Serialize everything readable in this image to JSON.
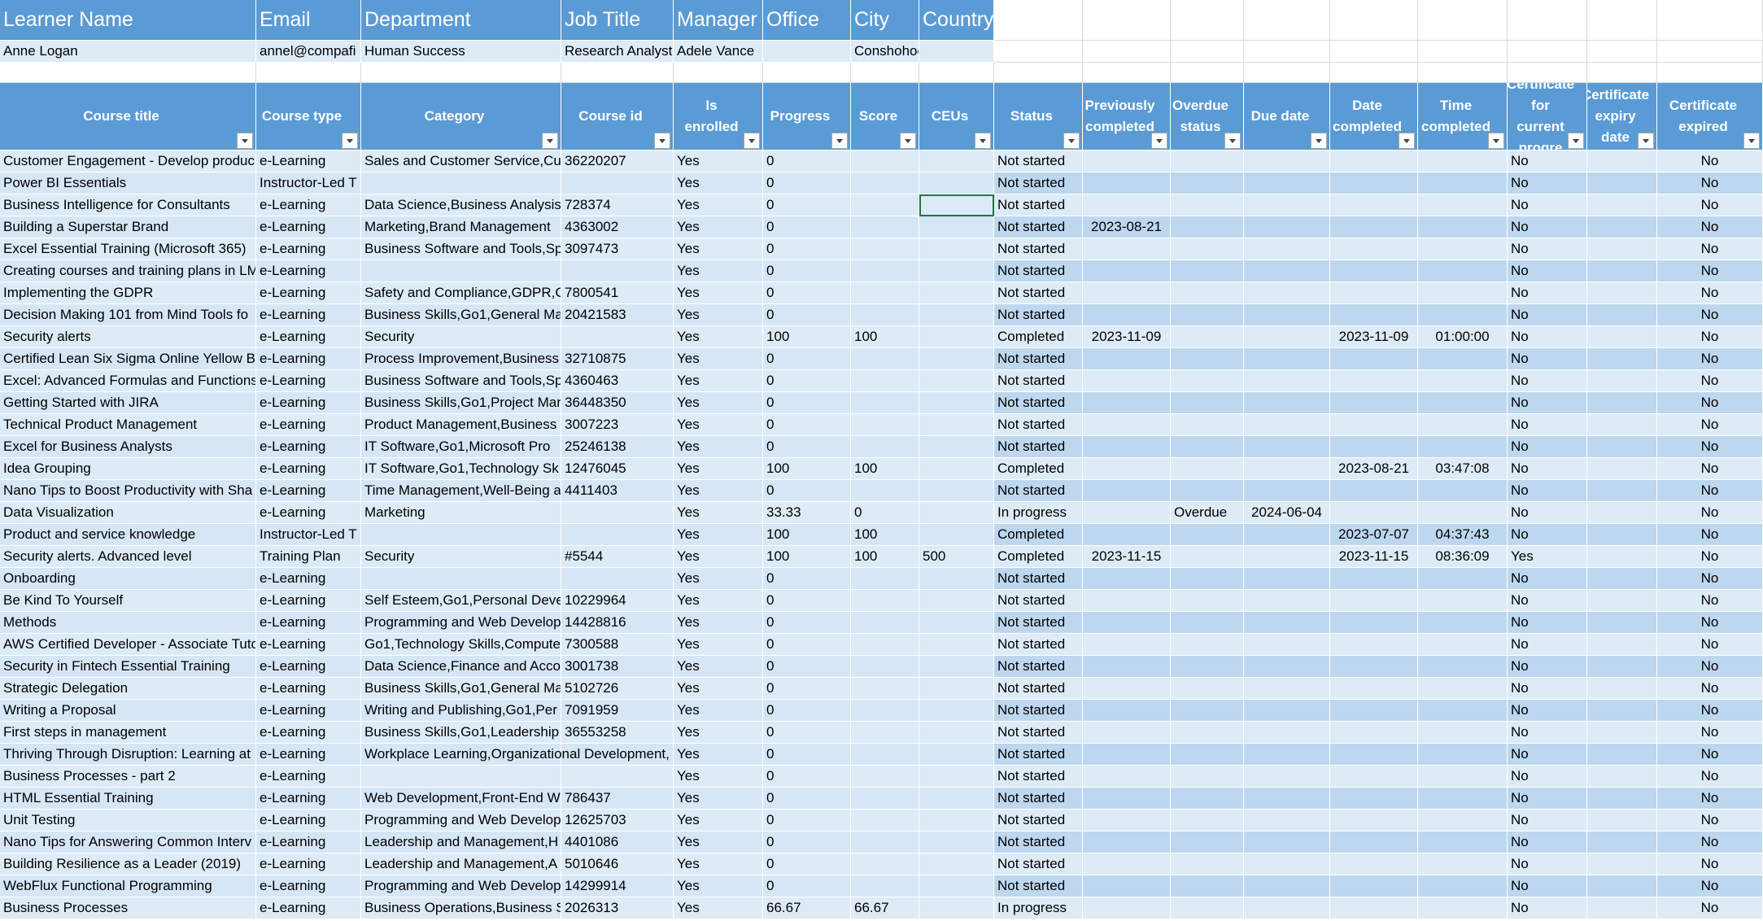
{
  "learner": {
    "headers": [
      "Learner Name",
      "Email",
      "Department",
      "Job Title",
      "Manager",
      "Office",
      "City",
      "Country"
    ],
    "values": [
      "Anne Logan",
      "annel@compafi",
      "Human Success",
      "Research Analyst",
      "Adele Vance",
      null,
      "Conshohoc",
      null
    ]
  },
  "table": {
    "headers": [
      "Course title",
      "Course type",
      "Category",
      "Course id",
      "Is enrolled",
      "Progress",
      "Score",
      "CEUs",
      "Status",
      "Previously completed",
      "Overdue status",
      "Due date",
      "Date completed",
      "Time completed",
      "Certificate for current progre",
      "Certificate expiry date",
      "Certificate expired"
    ],
    "rows": [
      [
        "Customer Engagement - Develop produc",
        "e-Learning",
        "Sales and Customer Service,Cus",
        "36220207",
        "Yes",
        0,
        null,
        null,
        "Not started",
        null,
        null,
        null,
        null,
        null,
        "No",
        null,
        "No"
      ],
      [
        "Power BI Essentials",
        "Instructor-Led T",
        null,
        null,
        "Yes",
        0,
        null,
        null,
        "Not started",
        null,
        null,
        null,
        null,
        null,
        "No",
        null,
        "No"
      ],
      [
        "Business Intelligence for Consultants",
        "e-Learning",
        "Data Science,Business Analysis",
        "728374",
        "Yes",
        0,
        null,
        null,
        "Not started",
        null,
        null,
        null,
        null,
        null,
        "No",
        null,
        "No"
      ],
      [
        "Building a Superstar Brand",
        "e-Learning",
        "Marketing,Brand Management",
        "4363002",
        "Yes",
        0,
        null,
        null,
        "Not started",
        "2023-08-21",
        null,
        null,
        null,
        null,
        "No",
        null,
        "No"
      ],
      [
        "Excel Essential Training (Microsoft 365)",
        "e-Learning",
        "Business Software and Tools,Sp",
        "3097473",
        "Yes",
        0,
        null,
        null,
        "Not started",
        null,
        null,
        null,
        null,
        null,
        "No",
        null,
        "No"
      ],
      [
        "Creating courses and training plans in LM",
        "e-Learning",
        null,
        null,
        "Yes",
        0,
        null,
        null,
        "Not started",
        null,
        null,
        null,
        null,
        null,
        "No",
        null,
        "No"
      ],
      [
        "Implementing the GDPR",
        "e-Learning",
        "Safety and Compliance,GDPR,G",
        "7800541",
        "Yes",
        0,
        null,
        null,
        "Not started",
        null,
        null,
        null,
        null,
        null,
        "No",
        null,
        "No"
      ],
      [
        "Decision Making 101 from Mind Tools fo",
        "e-Learning",
        "Business Skills,Go1,General Ma",
        "20421583",
        "Yes",
        0,
        null,
        null,
        "Not started",
        null,
        null,
        null,
        null,
        null,
        "No",
        null,
        "No"
      ],
      [
        "Security alerts",
        "e-Learning",
        "Security",
        null,
        "Yes",
        100,
        100,
        null,
        "Completed",
        "2023-11-09",
        null,
        null,
        "2023-11-09",
        "01:00:00",
        "No",
        null,
        "No"
      ],
      [
        "Certified Lean Six Sigma Online Yellow Be",
        "e-Learning",
        "Process Improvement,Business",
        "32710875",
        "Yes",
        0,
        null,
        null,
        "Not started",
        null,
        null,
        null,
        null,
        null,
        "No",
        null,
        "No"
      ],
      [
        "Excel: Advanced Formulas and Functions",
        "e-Learning",
        "Business Software and Tools,Sp",
        "4360463",
        "Yes",
        0,
        null,
        null,
        "Not started",
        null,
        null,
        null,
        null,
        null,
        "No",
        null,
        "No"
      ],
      [
        "Getting Started with JIRA",
        "e-Learning",
        "Business Skills,Go1,Project Mar",
        "36448350",
        "Yes",
        0,
        null,
        null,
        "Not started",
        null,
        null,
        null,
        null,
        null,
        "No",
        null,
        "No"
      ],
      [
        "Technical Product Management",
        "e-Learning",
        "Product Management,Business",
        "3007223",
        "Yes",
        0,
        null,
        null,
        "Not started",
        null,
        null,
        null,
        null,
        null,
        "No",
        null,
        "No"
      ],
      [
        "Excel for Business Analysts",
        "e-Learning",
        "IT Software,Go1,Microsoft Pro",
        "25246138",
        "Yes",
        0,
        null,
        null,
        "Not started",
        null,
        null,
        null,
        null,
        null,
        "No",
        null,
        "No"
      ],
      [
        "Idea Grouping",
        "e-Learning",
        "IT Software,Go1,Technology Sk",
        "12476045",
        "Yes",
        100,
        100,
        null,
        "Completed",
        null,
        null,
        null,
        "2023-08-21",
        "03:47:08",
        "No",
        null,
        "No"
      ],
      [
        "Nano Tips to Boost Productivity with Sha",
        "e-Learning",
        "Time Management,Well-Being a",
        "4411403",
        "Yes",
        0,
        null,
        null,
        "Not started",
        null,
        null,
        null,
        null,
        null,
        "No",
        null,
        "No"
      ],
      [
        "Data Visualization",
        "e-Learning",
        "Marketing",
        null,
        "Yes",
        33.33,
        0,
        null,
        "In progress",
        null,
        "Overdue",
        "2024-06-04",
        null,
        null,
        "No",
        null,
        "No"
      ],
      [
        "Product and service knowledge",
        "Instructor-Led T",
        null,
        null,
        "Yes",
        100,
        100,
        null,
        "Completed",
        null,
        null,
        null,
        "2023-07-07",
        "04:37:43",
        "No",
        null,
        "No"
      ],
      [
        "Security alerts. Advanced level",
        "Training Plan",
        "Security",
        "#5544",
        "Yes",
        100,
        100,
        500,
        "Completed",
        "2023-11-15",
        null,
        null,
        "2023-11-15",
        "08:36:09",
        "Yes",
        null,
        "No"
      ],
      [
        "Onboarding",
        "e-Learning",
        null,
        null,
        "Yes",
        0,
        null,
        null,
        "Not started",
        null,
        null,
        null,
        null,
        null,
        "No",
        null,
        "No"
      ],
      [
        "Be Kind To Yourself",
        "e-Learning",
        "Self Esteem,Go1,Personal Deve",
        "10229964",
        "Yes",
        0,
        null,
        null,
        "Not started",
        null,
        null,
        null,
        null,
        null,
        "No",
        null,
        "No"
      ],
      [
        "Methods",
        "e-Learning",
        "Programming and Web Develop",
        "14428816",
        "Yes",
        0,
        null,
        null,
        "Not started",
        null,
        null,
        null,
        null,
        null,
        "No",
        null,
        "No"
      ],
      [
        "AWS Certified Developer - Associate Tuto",
        "e-Learning",
        "Go1,Technology Skills,Compute",
        "7300588",
        "Yes",
        0,
        null,
        null,
        "Not started",
        null,
        null,
        null,
        null,
        null,
        "No",
        null,
        "No"
      ],
      [
        "Security in Fintech Essential Training",
        "e-Learning",
        "Data Science,Finance and Accou",
        "3001738",
        "Yes",
        0,
        null,
        null,
        "Not started",
        null,
        null,
        null,
        null,
        null,
        "No",
        null,
        "No"
      ],
      [
        "Strategic Delegation",
        "e-Learning",
        "Business Skills,Go1,General Ma",
        "5102726",
        "Yes",
        0,
        null,
        null,
        "Not started",
        null,
        null,
        null,
        null,
        null,
        "No",
        null,
        "No"
      ],
      [
        "Writing a Proposal",
        "e-Learning",
        "Writing and Publishing,Go1,Per",
        "7091959",
        "Yes",
        0,
        null,
        null,
        "Not started",
        null,
        null,
        null,
        null,
        null,
        "No",
        null,
        "No"
      ],
      [
        "First steps in management",
        "e-Learning",
        "Business Skills,Go1,Leadership",
        "36553258",
        "Yes",
        0,
        null,
        null,
        "Not started",
        null,
        null,
        null,
        null,
        null,
        "No",
        null,
        "No"
      ],
      [
        "Thriving Through Disruption: Learning at",
        "e-Learning",
        "Workplace Learning,Organizational Development,",
        null,
        "Yes",
        0,
        null,
        null,
        "Not started",
        null,
        null,
        null,
        null,
        null,
        "No",
        null,
        "No"
      ],
      [
        "Business Processes - part 2",
        "e-Learning",
        null,
        null,
        "Yes",
        0,
        null,
        null,
        "Not started",
        null,
        null,
        null,
        null,
        null,
        "No",
        null,
        "No"
      ],
      [
        "HTML Essential Training",
        "e-Learning",
        "Web Development,Front-End W",
        "786437",
        "Yes",
        0,
        null,
        null,
        "Not started",
        null,
        null,
        null,
        null,
        null,
        "No",
        null,
        "No"
      ],
      [
        "Unit Testing",
        "e-Learning",
        "Programming and Web Develop",
        "12625703",
        "Yes",
        0,
        null,
        null,
        "Not started",
        null,
        null,
        null,
        null,
        null,
        "No",
        null,
        "No"
      ],
      [
        "Nano Tips for Answering Common Interv",
        "e-Learning",
        "Leadership and Management,H",
        "4401086",
        "Yes",
        0,
        null,
        null,
        "Not started",
        null,
        null,
        null,
        null,
        null,
        "No",
        null,
        "No"
      ],
      [
        "Building Resilience as a Leader (2019)",
        "e-Learning",
        "Leadership and Management,A",
        "5010646",
        "Yes",
        0,
        null,
        null,
        "Not started",
        null,
        null,
        null,
        null,
        null,
        "No",
        null,
        "No"
      ],
      [
        "WebFlux Functional Programming",
        "e-Learning",
        "Programming and Web Develop",
        "14299914",
        "Yes",
        0,
        null,
        null,
        "Not started",
        null,
        null,
        null,
        null,
        null,
        "No",
        null,
        "No"
      ],
      [
        "Business Processes",
        "e-Learning",
        "Business Operations,Business S",
        "2026313",
        "Yes",
        66.67,
        66.67,
        null,
        "In progress",
        null,
        null,
        null,
        null,
        null,
        "No",
        null,
        "No"
      ]
    ]
  }
}
